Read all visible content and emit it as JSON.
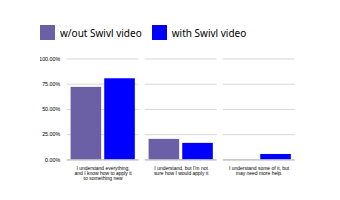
{
  "chart_data": {
    "type": "bar",
    "categories": [
      "I understand everything,\nand I know how to apply it\nto something new",
      "I understand, but I'm not\nsure how I would apply it",
      "I understand some of it, but\nmay need more help."
    ],
    "series": [
      {
        "name": "w/out Swivl video",
        "color": "#6B5FA5",
        "values": [
          0.72,
          0.205,
          0.0
        ]
      },
      {
        "name": "with Swivl video",
        "color": "#0000FF",
        "values": [
          0.805,
          0.165,
          0.055
        ]
      }
    ],
    "ylim": [
      0,
      1.0
    ],
    "yticks": [
      {
        "value": 0.0,
        "label": "0.00%"
      },
      {
        "value": 0.25,
        "label": "25.00%"
      },
      {
        "value": 0.5,
        "label": "50.00%"
      },
      {
        "value": 0.75,
        "label": "75.00%"
      },
      {
        "value": 1.0,
        "label": "100.00%"
      }
    ],
    "grid": true,
    "legend": "top"
  }
}
